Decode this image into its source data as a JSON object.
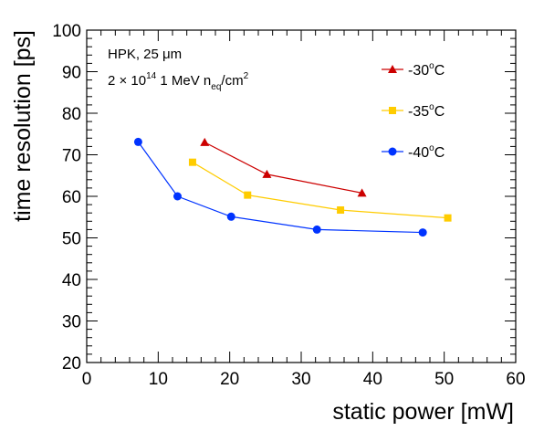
{
  "chart_data": {
    "type": "line",
    "xlabel": "static power [mW]",
    "ylabel": "time resolution [ps]",
    "xlim": [
      0,
      60
    ],
    "ylim": [
      20,
      100
    ],
    "x_ticks": [
      0,
      10,
      20,
      30,
      40,
      50,
      60
    ],
    "y_ticks": [
      20,
      30,
      40,
      50,
      60,
      70,
      80,
      90,
      100
    ],
    "grid": false,
    "legend_position": "top-right",
    "annotations": {
      "line1": "HPK, 25 μm",
      "line2_prefix": "2 × 10",
      "line2_exp": "14",
      "line2_mid": " 1 MeV n",
      "line2_sub": "eq",
      "line2_suffix": "/cm",
      "line2_sup2": "2"
    },
    "series": [
      {
        "name": "-30°C",
        "legend_main": "-30",
        "legend_sup": "o",
        "legend_tail": "C",
        "color": "#cc0000",
        "marker": "triangle",
        "x": [
          16.5,
          25.2,
          38.5
        ],
        "y": [
          73.0,
          65.3,
          60.8
        ]
      },
      {
        "name": "-35°C",
        "legend_main": "-35",
        "legend_sup": "o",
        "legend_tail": "C",
        "color": "#ffcc00",
        "marker": "square",
        "x": [
          14.8,
          22.5,
          35.5,
          50.5
        ],
        "y": [
          68.2,
          60.3,
          56.7,
          54.8
        ]
      },
      {
        "name": "-40°C",
        "legend_main": "-40",
        "legend_sup": "o",
        "legend_tail": "C",
        "color": "#0033ff",
        "marker": "circle",
        "x": [
          7.2,
          12.7,
          20.2,
          32.2,
          47.0
        ],
        "y": [
          73.1,
          60.0,
          55.1,
          52.0,
          51.3
        ]
      }
    ]
  }
}
